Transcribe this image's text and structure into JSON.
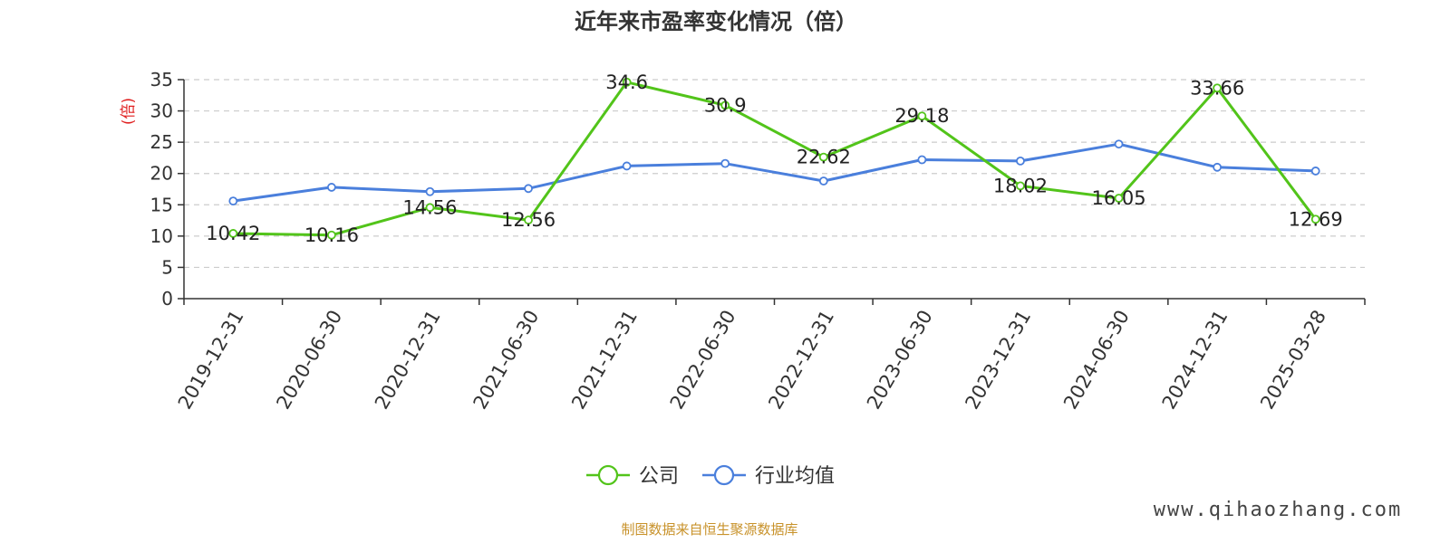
{
  "chart_data": {
    "type": "line",
    "title": "近年来市盈率变化情况（倍）",
    "ylabel": "(倍)",
    "xlabel": "",
    "ylim": [
      0,
      35
    ],
    "yticks": [
      0,
      5,
      10,
      15,
      20,
      25,
      30,
      35
    ],
    "grid": "horizontal-dashed",
    "legend_position": "bottom-center",
    "categories": [
      "2019-12-31",
      "2020-06-30",
      "2020-12-31",
      "2021-06-30",
      "2021-12-31",
      "2022-06-30",
      "2022-12-31",
      "2023-06-30",
      "2023-12-31",
      "2024-06-30",
      "2024-12-31",
      "2025-03-28"
    ],
    "series": [
      {
        "name": "公司",
        "color": "#52c41a",
        "show_labels": true,
        "values": [
          10.42,
          10.16,
          14.56,
          12.56,
          34.6,
          30.9,
          22.62,
          29.18,
          18.02,
          16.05,
          33.66,
          12.69
        ]
      },
      {
        "name": "行业均值",
        "color": "#4a7fdc",
        "show_labels": false,
        "values": [
          15.6,
          17.8,
          17.1,
          17.6,
          21.2,
          21.6,
          18.8,
          22.2,
          22.0,
          24.7,
          21.0,
          20.4
        ]
      }
    ]
  },
  "footer": {
    "source": "制图数据来自恒生聚源数据库",
    "watermark": "www.qihaozhang.com"
  }
}
